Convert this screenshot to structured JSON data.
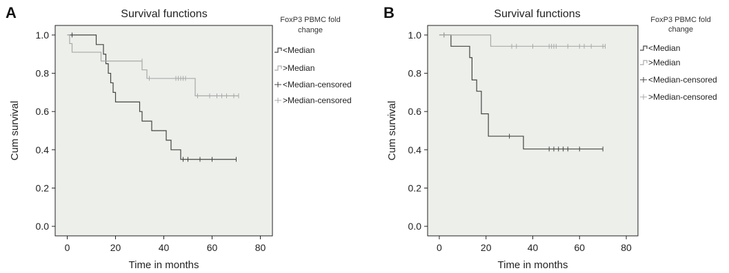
{
  "colors": {
    "below": "#444444",
    "above": "#a9a9a9",
    "plot_bg": "#ecefea"
  },
  "chart_data": [
    {
      "type": "line",
      "panel_label": "A",
      "title": "Survival functions",
      "xlabel": "Time in months",
      "ylabel": "Cum survival",
      "xlim": [
        -5,
        85
      ],
      "ylim": [
        -0.05,
        1.05
      ],
      "xticks": [
        "0",
        "20",
        "40",
        "60",
        "80"
      ],
      "yticks": [
        "0.0",
        "0.2",
        "0.4",
        "0.6",
        "0.8",
        "1.0"
      ],
      "legend": {
        "title": [
          "FoxP3 PBMC fold",
          "change"
        ],
        "entries": [
          "<Median",
          ">Median",
          "<Median-censored",
          ">Median-censored"
        ]
      },
      "series": [
        {
          "name": "<Median",
          "color": "#444444",
          "steps": [
            [
              0,
              1.0
            ],
            [
              12,
              0.95
            ],
            [
              15,
              0.9
            ],
            [
              16,
              0.85
            ],
            [
              17,
              0.8
            ],
            [
              18,
              0.75
            ],
            [
              19,
              0.7
            ],
            [
              20,
              0.65
            ],
            [
              30,
              0.6
            ],
            [
              31,
              0.55
            ],
            [
              35,
              0.5
            ],
            [
              41,
              0.45
            ],
            [
              43,
              0.4
            ],
            [
              47,
              0.35
            ],
            [
              70,
              0.35
            ]
          ],
          "censored": [
            [
              2,
              1.0
            ],
            [
              48,
              0.35
            ],
            [
              50,
              0.35
            ],
            [
              55,
              0.35
            ],
            [
              60,
              0.35
            ],
            [
              70,
              0.35
            ]
          ]
        },
        {
          "name": ">Median",
          "color": "#a9a9a9",
          "steps": [
            [
              0,
              1.0
            ],
            [
              1,
              0.955
            ],
            [
              2,
              0.91
            ],
            [
              14,
              0.864
            ],
            [
              31,
              0.818
            ],
            [
              33,
              0.773
            ],
            [
              53,
              0.682
            ],
            [
              71,
              0.682
            ]
          ],
          "censored": [
            [
              31,
              0.864
            ],
            [
              34,
              0.773
            ],
            [
              45,
              0.773
            ],
            [
              46,
              0.773
            ],
            [
              47,
              0.773
            ],
            [
              48,
              0.773
            ],
            [
              49,
              0.773
            ],
            [
              54,
              0.682
            ],
            [
              59,
              0.682
            ],
            [
              62,
              0.682
            ],
            [
              64,
              0.682
            ],
            [
              66,
              0.682
            ],
            [
              69,
              0.682
            ],
            [
              71,
              0.682
            ]
          ]
        }
      ]
    },
    {
      "type": "line",
      "panel_label": "B",
      "title": "Survival functions",
      "xlabel": "Time in months",
      "ylabel": "Cum survival",
      "xlim": [
        -5,
        85
      ],
      "ylim": [
        -0.05,
        1.05
      ],
      "xticks": [
        "0",
        "20",
        "40",
        "60",
        "80"
      ],
      "yticks": [
        "0.0",
        "0.2",
        "0.4",
        "0.6",
        "0.8",
        "1.0"
      ],
      "legend": {
        "title": [
          "FoxP3 PBMC fold",
          "change"
        ],
        "entries": [
          "<Median",
          ">Median",
          "<Median-censored",
          ">Median-censored"
        ]
      },
      "series": [
        {
          "name": "<Median",
          "color": "#444444",
          "steps": [
            [
              0,
              1.0
            ],
            [
              5,
              0.941
            ],
            [
              13,
              0.882
            ],
            [
              14,
              0.765
            ],
            [
              16,
              0.706
            ],
            [
              18,
              0.588
            ],
            [
              21,
              0.471
            ],
            [
              36,
              0.404
            ],
            [
              70,
              0.404
            ]
          ],
          "censored": [
            [
              2,
              1.0
            ],
            [
              30,
              0.471
            ],
            [
              47,
              0.404
            ],
            [
              49,
              0.404
            ],
            [
              51,
              0.404
            ],
            [
              53,
              0.404
            ],
            [
              55,
              0.404
            ],
            [
              60,
              0.404
            ],
            [
              70,
              0.404
            ]
          ]
        },
        {
          "name": ">Median",
          "color": "#a9a9a9",
          "steps": [
            [
              0,
              1.0
            ],
            [
              22,
              0.941
            ],
            [
              71,
              0.941
            ]
          ],
          "censored": [
            [
              2,
              1.0
            ],
            [
              31,
              0.941
            ],
            [
              33,
              0.941
            ],
            [
              40,
              0.941
            ],
            [
              47,
              0.941
            ],
            [
              48,
              0.941
            ],
            [
              49,
              0.941
            ],
            [
              50,
              0.941
            ],
            [
              55,
              0.941
            ],
            [
              60,
              0.941
            ],
            [
              62,
              0.941
            ],
            [
              65,
              0.941
            ],
            [
              70,
              0.941
            ],
            [
              71,
              0.941
            ]
          ]
        }
      ]
    }
  ]
}
